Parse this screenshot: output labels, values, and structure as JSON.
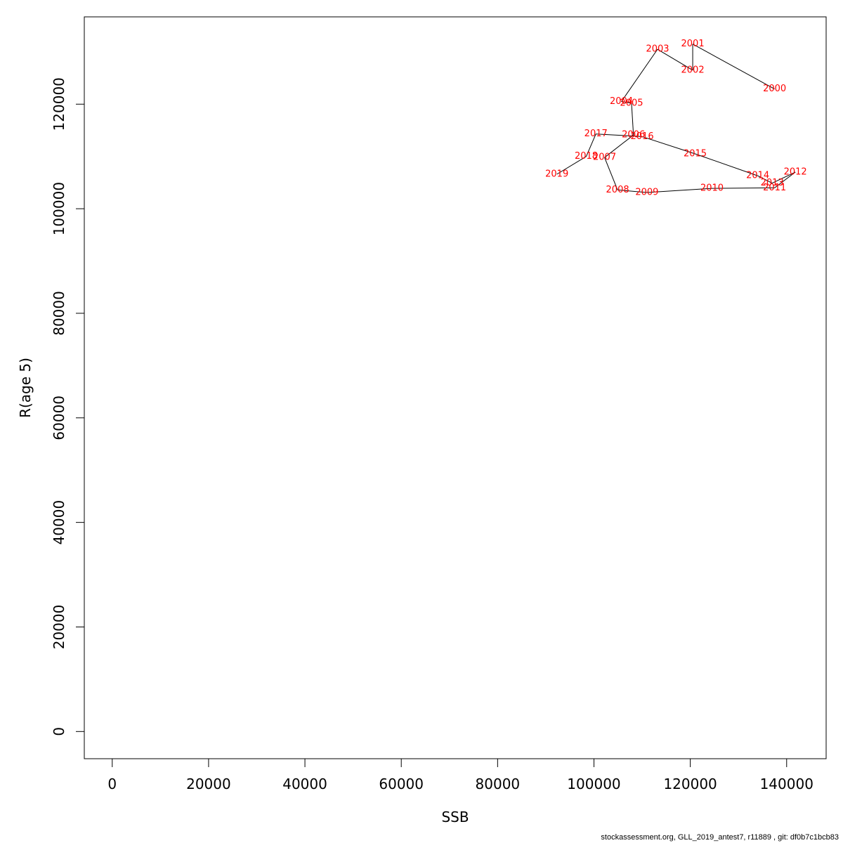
{
  "chart_data": {
    "type": "line",
    "title": "",
    "xlabel": "SSB",
    "ylabel": "R(age 5)",
    "xlim": [
      -5800,
      148200
    ],
    "ylim": [
      -5200,
      136700
    ],
    "xticks": [
      0,
      20000,
      40000,
      60000,
      80000,
      100000,
      120000,
      140000
    ],
    "yticks": [
      0,
      20000,
      40000,
      60000,
      80000,
      100000,
      120000
    ],
    "grid": false,
    "line_color": "#000000",
    "label_color": "#ff0000",
    "points": [
      {
        "year": "2000",
        "x": 137500,
        "y": 122900
      },
      {
        "year": "2001",
        "x": 120500,
        "y": 131500
      },
      {
        "year": "2002",
        "x": 120500,
        "y": 126500
      },
      {
        "year": "2003",
        "x": 113200,
        "y": 130500
      },
      {
        "year": "2004",
        "x": 105700,
        "y": 120500
      },
      {
        "year": "2005",
        "x": 107800,
        "y": 120200
      },
      {
        "year": "2006",
        "x": 108200,
        "y": 114100
      },
      {
        "year": "2007",
        "x": 102200,
        "y": 109800
      },
      {
        "year": "2008",
        "x": 104900,
        "y": 103600
      },
      {
        "year": "2009",
        "x": 111000,
        "y": 103100
      },
      {
        "year": "2010",
        "x": 124500,
        "y": 103900
      },
      {
        "year": "2011",
        "x": 137500,
        "y": 104000
      },
      {
        "year": "2012",
        "x": 141800,
        "y": 107000
      },
      {
        "year": "2013",
        "x": 137000,
        "y": 104900
      },
      {
        "year": "2014",
        "x": 134000,
        "y": 106300
      },
      {
        "year": "2015",
        "x": 121000,
        "y": 110500
      },
      {
        "year": "2016",
        "x": 110000,
        "y": 113800
      },
      {
        "year": "2017",
        "x": 100400,
        "y": 114300
      },
      {
        "year": "2018",
        "x": 98400,
        "y": 110000
      },
      {
        "year": "2019",
        "x": 92300,
        "y": 106600
      }
    ]
  },
  "footer": "stockassessment.org, GLL_2019_antest7, r11889 , git: df0b7c1bcb83"
}
